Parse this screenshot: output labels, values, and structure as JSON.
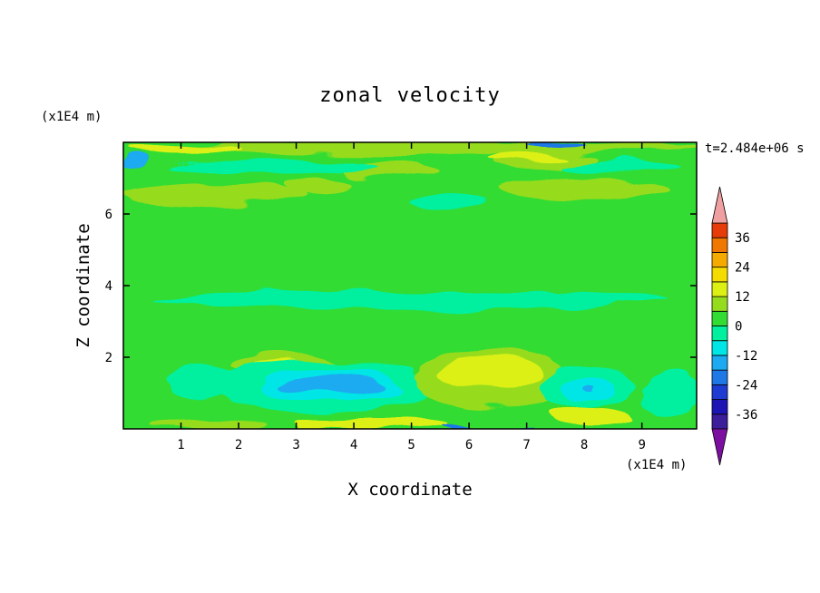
{
  "chart_data": {
    "type": "heatmap",
    "title": "zonal velocity",
    "xlabel": "X coordinate",
    "ylabel": "Z coordinate",
    "x_unit": "(x1E4 m)",
    "y_unit": "(x1E4 m)",
    "time_label": "t=2.484e+06 s",
    "xlim": [
      0,
      9.95
    ],
    "ylim": [
      0,
      8.0
    ],
    "x_ticks": [
      1,
      2,
      3,
      4,
      5,
      6,
      7,
      8,
      9
    ],
    "y_ticks": [
      2,
      4,
      6
    ],
    "background_value": 2,
    "colorbar": {
      "levels": [
        -42,
        -36,
        -30,
        -24,
        -18,
        -12,
        -6,
        0,
        6,
        12,
        18,
        24,
        30,
        36,
        42
      ],
      "tick_labels": [
        {
          "value": 36,
          "text": "36"
        },
        {
          "value": 24,
          "text": "24"
        },
        {
          "value": 12,
          "text": "12"
        },
        {
          "value": 0,
          "text": "0"
        },
        {
          "value": -12,
          "text": "-12"
        },
        {
          "value": -24,
          "text": "-24"
        },
        {
          "value": -36,
          "text": "-36"
        }
      ],
      "colors": [
        "#3c1e9a",
        "#1e14b4",
        "#1e3cd2",
        "#1e78e6",
        "#1eaaf0",
        "#00e6e6",
        "#00f0a0",
        "#32dc32",
        "#96dc1e",
        "#dcf014",
        "#f5dc00",
        "#f5aa00",
        "#f07800",
        "#e63c0a",
        "#dc140a"
      ],
      "under_color": "#7d0fa0",
      "over_color": "#f0a0a0"
    },
    "regions": [
      {
        "x": 5.0,
        "z": 4.0,
        "rx": 5.2,
        "rz": 0.55,
        "value": 0
      },
      {
        "x": 1.5,
        "z": 5.0,
        "rx": 1.6,
        "rz": 0.35,
        "value": 0
      },
      {
        "x": 6.8,
        "z": 2.9,
        "rx": 2.0,
        "rz": 0.3,
        "value": 0
      },
      {
        "x": 5.0,
        "z": 3.6,
        "rx": 4.5,
        "rz": 0.25,
        "value": -2
      },
      {
        "x": 5.0,
        "z": 7.85,
        "rx": 5.0,
        "rz": 0.18,
        "value": 8
      },
      {
        "x": 1.6,
        "z": 6.55,
        "rx": 1.6,
        "rz": 0.28,
        "value": 8
      },
      {
        "x": 8.0,
        "z": 6.7,
        "rx": 1.5,
        "rz": 0.3,
        "value": 8
      },
      {
        "x": 4.6,
        "z": 7.2,
        "rx": 0.8,
        "rz": 0.25,
        "value": 8
      },
      {
        "x": 7.3,
        "z": 7.5,
        "rx": 0.9,
        "rz": 0.25,
        "value": 10
      },
      {
        "x": 3.4,
        "z": 6.8,
        "rx": 0.6,
        "rz": 0.2,
        "value": 8
      },
      {
        "x": 1.0,
        "z": 7.8,
        "rx": 1.0,
        "rz": 0.15,
        "value": 12
      },
      {
        "x": 7.0,
        "z": 7.6,
        "rx": 0.7,
        "rz": 0.12,
        "value": 12
      },
      {
        "x": 2.6,
        "z": 7.3,
        "rx": 1.8,
        "rz": 0.2,
        "value": -4
      },
      {
        "x": 5.6,
        "z": 6.35,
        "rx": 0.7,
        "rz": 0.22,
        "value": -4
      },
      {
        "x": 8.6,
        "z": 7.3,
        "rx": 1.0,
        "rz": 0.18,
        "value": -4
      },
      {
        "x": 0.2,
        "z": 7.45,
        "rx": 0.2,
        "rz": 0.15,
        "value": -14
      },
      {
        "x": 7.5,
        "z": 7.95,
        "rx": 0.5,
        "rz": 0.07,
        "value": -22
      },
      {
        "x": 2.8,
        "z": 1.75,
        "rx": 0.9,
        "rz": 0.3,
        "value": 8
      },
      {
        "x": 2.8,
        "z": 1.75,
        "rx": 0.45,
        "rz": 0.15,
        "value": 13
      },
      {
        "x": 3.5,
        "z": 1.2,
        "rx": 1.9,
        "rz": 0.7,
        "value": -4
      },
      {
        "x": 3.6,
        "z": 1.2,
        "rx": 1.2,
        "rz": 0.45,
        "value": -10
      },
      {
        "x": 3.6,
        "z": 1.25,
        "rx": 0.9,
        "rz": 0.2,
        "value": -16
      },
      {
        "x": 6.4,
        "z": 1.4,
        "rx": 1.3,
        "rz": 0.85,
        "value": 8
      },
      {
        "x": 6.4,
        "z": 1.55,
        "rx": 0.9,
        "rz": 0.5,
        "value": 13
      },
      {
        "x": 8.1,
        "z": 1.2,
        "rx": 0.8,
        "rz": 0.6,
        "value": -4
      },
      {
        "x": 8.1,
        "z": 1.1,
        "rx": 0.45,
        "rz": 0.35,
        "value": -10
      },
      {
        "x": 8.1,
        "z": 1.05,
        "rx": 0.08,
        "rz": 0.08,
        "value": -16
      },
      {
        "x": 4.3,
        "z": 0.1,
        "rx": 1.3,
        "rz": 0.18,
        "value": 13
      },
      {
        "x": 8.1,
        "z": 0.35,
        "rx": 0.7,
        "rz": 0.25,
        "value": 13
      },
      {
        "x": 1.5,
        "z": 0.15,
        "rx": 1.0,
        "rz": 0.15,
        "value": 8
      },
      {
        "x": 6.3,
        "z": 0.05,
        "rx": 0.8,
        "rz": 0.08,
        "value": -22
      },
      {
        "x": 1.3,
        "z": 1.3,
        "rx": 0.6,
        "rz": 0.5,
        "value": -4
      },
      {
        "x": 9.5,
        "z": 1.0,
        "rx": 0.5,
        "rz": 0.6,
        "value": -4
      }
    ]
  }
}
